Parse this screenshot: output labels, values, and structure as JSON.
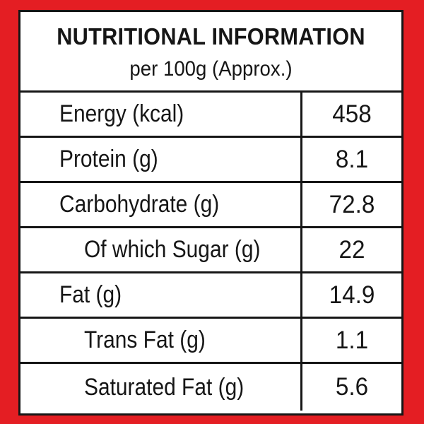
{
  "header": {
    "title": "NUTRITIONAL INFORMATION",
    "subtitle": "per 100g (Approx.)"
  },
  "rows": [
    {
      "label": "Energy (kcal)",
      "value": "458",
      "indent": false
    },
    {
      "label": "Protein (g)",
      "value": "8.1",
      "indent": false
    },
    {
      "label": "Carbohydrate (g)",
      "value": "72.8",
      "indent": false
    },
    {
      "label": "Of which Sugar (g)",
      "value": "22",
      "indent": true
    },
    {
      "label": "Fat (g)",
      "value": "14.9",
      "indent": false
    },
    {
      "label": "Trans Fat (g)",
      "value": "1.1",
      "indent": true
    },
    {
      "label": "Saturated Fat (g)",
      "value": "5.6",
      "indent": true
    }
  ],
  "colors": {
    "frame": "#e41e23",
    "panel": "#ffffff",
    "ink": "#161616"
  }
}
